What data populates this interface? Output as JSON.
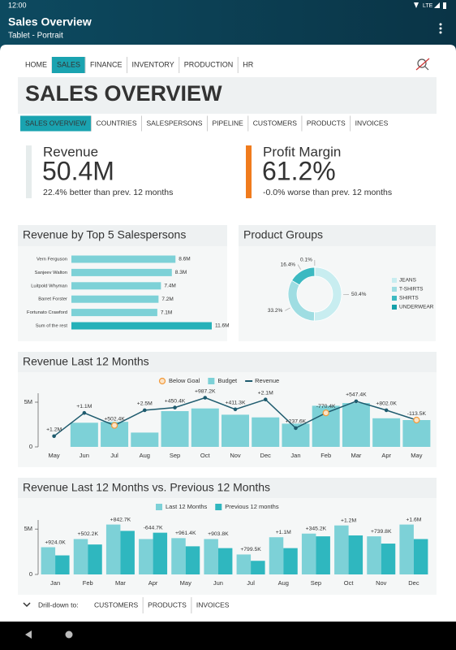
{
  "status_bar": {
    "time": "12:00",
    "network": "LTE"
  },
  "app_bar": {
    "title": "Sales Overview",
    "subtitle": "Tablet - Portrait"
  },
  "nav": {
    "items": [
      "HOME",
      "SALES",
      "FINANCE",
      "INVENTORY",
      "PRODUCTION",
      "HR"
    ],
    "active": 1
  },
  "header": {
    "title": "SALES OVERVIEW"
  },
  "tabs": {
    "items": [
      "SALES OVERVIEW",
      "COUNTRIES",
      "SALESPERSONS",
      "PIPELINE",
      "CUSTOMERS",
      "PRODUCTS",
      "INVOICES"
    ],
    "active": 0
  },
  "kpis": [
    {
      "label": "Revenue",
      "value": "50.4M",
      "note": "22.4% better than prev. 12 months",
      "color": "#e6ecec"
    },
    {
      "label": "Profit Margin",
      "value": "61.2%",
      "note": "-0.0% worse than prev. 12 months",
      "color": "#f07b1d"
    }
  ],
  "charts": [
    {
      "type": "hbar",
      "title": "Revenue by Top 5 Salespersons",
      "categories": [
        "Vern Ferguson",
        "Sanjeev Walton",
        "Luitpold Whyman",
        "Barret Forster",
        "Fortunato Crawford",
        "Sum of the rest"
      ],
      "values": [
        8.6,
        8.3,
        7.4,
        7.2,
        7.1,
        11.6
      ],
      "value_labels": [
        "8.6M",
        "8.3M",
        "7.4M",
        "7.2M",
        "7.1M",
        "11.6M"
      ],
      "colors": [
        "#7dd1d7",
        "#7dd1d7",
        "#7dd1d7",
        "#7dd1d7",
        "#7dd1d7",
        "#26b1b9"
      ]
    },
    {
      "type": "donut",
      "title": "Product Groups",
      "categories": [
        "JEANS",
        "T-SHIRTS",
        "SHIRTS",
        "UNDERWEAR"
      ],
      "values": [
        50.4,
        33.2,
        16.4,
        0.1
      ],
      "value_labels": [
        "50.4%",
        "33.2%",
        "16.4%",
        "0.1%"
      ],
      "colors": [
        "#c8edf0",
        "#9fdde2",
        "#3cb9c1",
        "#14a0a9"
      ]
    },
    {
      "type": "combo",
      "title": "Revenue Last 12 Months",
      "categories": [
        "May",
        "Jun",
        "Jul",
        "Aug",
        "Sep",
        "Oct",
        "Nov",
        "Dec",
        "Jan",
        "Feb",
        "Mar",
        "Apr",
        "May"
      ],
      "below_goal": {
        "name": "Below Goal",
        "color": "#f29a3a"
      },
      "series": [
        {
          "name": "Budget",
          "type": "bar",
          "color": "#7dd1d7",
          "values": [
            null,
            2.7,
            2.8,
            1.6,
            4.0,
            4.3,
            3.6,
            3.3,
            2.6,
            4.6,
            4.9,
            3.2,
            3.0
          ]
        },
        {
          "name": "Revenue",
          "type": "line",
          "color": "#1e5b6e",
          "values": [
            1.2,
            3.8,
            2.4,
            4.1,
            4.4,
            5.5,
            4.2,
            5.3,
            2.1,
            3.8,
            5.1,
            4.1,
            3.0
          ],
          "annotations": [
            "+1.2M",
            "+1.1M",
            "+502.4K",
            "+2.5M",
            "+450.4K",
            "+987.2K",
            "+411.3K",
            "+2.1M",
            "+237.6K",
            "-770.4K",
            "+547.4K",
            "+802.0K",
            "-113.5K"
          ],
          "below_goal": [
            false,
            false,
            true,
            false,
            false,
            false,
            false,
            false,
            false,
            true,
            false,
            false,
            true
          ]
        }
      ],
      "ylim": [
        0,
        6
      ],
      "yticks": [
        0,
        {
          "value": 5,
          "label": "5M"
        }
      ]
    },
    {
      "type": "grouped_bar",
      "title": "Revenue Last 12 Months vs. Previous 12 Months",
      "categories": [
        "Jan",
        "Feb",
        "Mar",
        "Apr",
        "May",
        "Jun",
        "Jul",
        "Aug",
        "Sep",
        "Oct",
        "Nov",
        "Dec"
      ],
      "series": [
        {
          "name": "Last 12 Months",
          "color": "#7dd1d7",
          "values": [
            3.0,
            3.9,
            5.5,
            3.9,
            4.0,
            3.9,
            2.2,
            4.1,
            4.5,
            5.4,
            4.2,
            5.5
          ]
        },
        {
          "name": "Previous 12 months",
          "color": "#2fb7bf",
          "values": [
            2.1,
            3.3,
            4.8,
            4.6,
            3.1,
            2.9,
            1.5,
            2.9,
            4.2,
            4.3,
            3.4,
            3.9
          ]
        }
      ],
      "annotations": [
        "+924.0K",
        "+502.2K",
        "+842.7K",
        "-644.7K",
        "+961.4K",
        "+903.8K",
        "+799.5K",
        "+1.1M",
        "+345.2K",
        "+1.2M",
        "+739.8K",
        "+1.6M"
      ],
      "ylim": [
        0,
        6
      ],
      "yticks": [
        0,
        {
          "value": 5,
          "label": "5M"
        }
      ]
    }
  ],
  "drilldown": {
    "label": "Drill-down to:",
    "items": [
      "CUSTOMERS",
      "PRODUCTS",
      "INVOICES"
    ]
  }
}
